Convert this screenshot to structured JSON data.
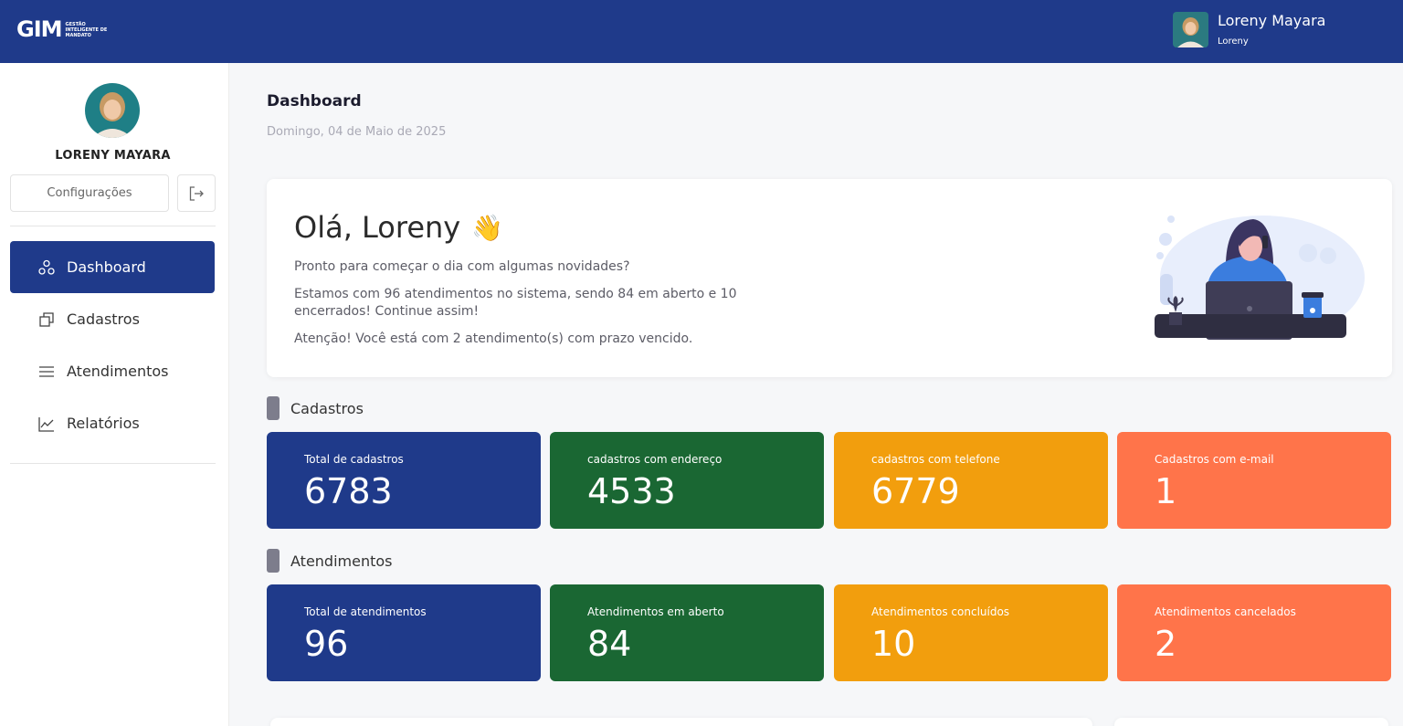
{
  "header": {
    "logo_main": "GIM",
    "logo_sub_1": "GESTÃO",
    "logo_sub_2": "INTELIGENTE DE",
    "logo_sub_3": "MANDATO",
    "user_name": "Loreny Mayara",
    "user_role": "Loreny"
  },
  "sidebar": {
    "user_name": "LORENY MAYARA",
    "config_label": "Configurações",
    "items": [
      {
        "label": "Dashboard",
        "icon": "nodes-icon",
        "active": true
      },
      {
        "label": "Cadastros",
        "icon": "copy-icon"
      },
      {
        "label": "Atendimentos",
        "icon": "menu-icon"
      },
      {
        "label": "Relatórios",
        "icon": "line-chart-icon"
      }
    ]
  },
  "page": {
    "title": "Dashboard",
    "date": "Domingo, 04 de Maio de 2025"
  },
  "welcome": {
    "greeting": "Olá, Loreny",
    "emoji": "👋",
    "line1": "Pronto para começar o dia com algumas novidades?",
    "line2": "Estamos com 96 atendimentos no sistema, sendo 84 em aberto e 10 encerrados! Continue assim!",
    "line3": "Atenção! Você está com 2 atendimento(s) com prazo vencido."
  },
  "sections": {
    "cadastros": {
      "title": "Cadastros",
      "cards": [
        {
          "label": "Total de cadastros",
          "value": "6783"
        },
        {
          "label": "cadastros com endereço",
          "value": "4533"
        },
        {
          "label": "cadastros com telefone",
          "value": "6779"
        },
        {
          "label": "Cadastros com e-mail",
          "value": "1"
        }
      ]
    },
    "atendimentos": {
      "title": "Atendimentos",
      "cards": [
        {
          "label": "Total de atendimentos",
          "value": "96"
        },
        {
          "label": "Atendimentos em aberto",
          "value": "84"
        },
        {
          "label": "Atendimentos concluídos",
          "value": "10"
        },
        {
          "label": "Atendimentos cancelados",
          "value": "2"
        }
      ]
    }
  },
  "colors": {
    "primary": "#1f3a8a",
    "green": "#1a6733",
    "orange": "#f29e0d",
    "coral": "#ff744a"
  }
}
